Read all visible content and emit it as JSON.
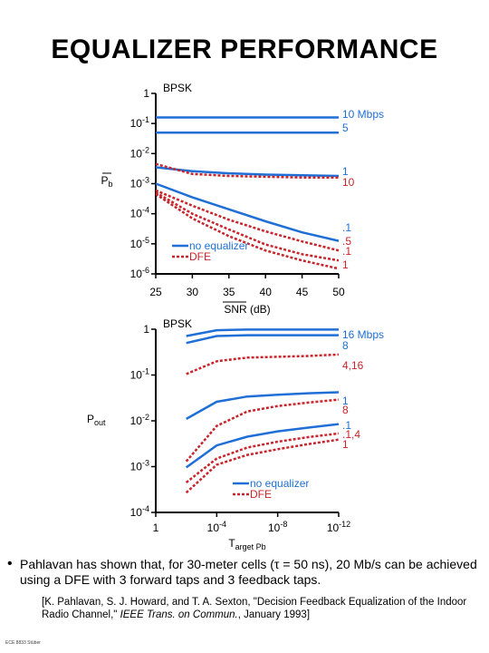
{
  "title": "EQUALIZER PERFORMANCE",
  "bullet": "Pahlavan has shown that, for 30-meter cells (τ = 50 ns), 20 Mb/s can be achieved using a DFE with 3 forward taps and 3 feedback taps.",
  "reference": {
    "prefix": "[K. Pahlavan, S. J. Howard, and T. A. Sexton, \"Decision Feedback Equalization of the Indoor Radio Channel,\" ",
    "journal": "IEEE Trans. on Commun.",
    "suffix": ", January 1993]"
  },
  "footer": "ECE 8833 Stüber",
  "colors": {
    "no_equalizer": "#1f6fd6",
    "dfe": "#c8242b",
    "axis": "#000000"
  },
  "chart_data": [
    {
      "type": "line",
      "annotation": "BPSK",
      "xlabel": "SNR (dB)",
      "ylabel": "Pb",
      "x_scale": "linear",
      "y_scale": "log",
      "xlim": [
        25,
        50
      ],
      "ylim": [
        1e-06,
        1
      ],
      "xticks": [
        "25",
        "30",
        "35",
        "40",
        "45",
        "50"
      ],
      "yticks": [
        "1",
        "10-1",
        "10-2",
        "10-3",
        "10-4",
        "10-5",
        "10-6"
      ],
      "legend": {
        "position": "center-left",
        "entries": [
          "no equalizer",
          "DFE"
        ]
      },
      "series": [
        {
          "label": "10 Mbps",
          "style": "no_equalizer",
          "x": [
            25,
            50
          ],
          "y": [
            0.1585,
            0.1585
          ]
        },
        {
          "label": "5",
          "style": "no_equalizer",
          "x": [
            25,
            50
          ],
          "y": [
            0.05,
            0.05
          ]
        },
        {
          "label": "1",
          "style": "no_equalizer",
          "x": [
            25,
            30,
            35,
            40,
            45,
            50
          ],
          "y": [
            0.0035,
            0.0026,
            0.0022,
            0.002,
            0.0019,
            0.0018
          ]
        },
        {
          "label": "10",
          "style": "dfe",
          "x": [
            25,
            30,
            35,
            40,
            45,
            50
          ],
          "y": [
            0.0045,
            0.0021,
            0.0018,
            0.0017,
            0.0016,
            0.0016
          ]
        },
        {
          "label": ".1",
          "style": "no_equalizer",
          "x": [
            25,
            30,
            35,
            40,
            45,
            50
          ],
          "y": [
            0.001,
            0.00035,
            0.00014,
            5.6e-05,
            2.4e-05,
            1.25e-05
          ]
        },
        {
          "label": ".5",
          "style": "dfe",
          "x": [
            25,
            30,
            35,
            40,
            45,
            50
          ],
          "y": [
            0.0006,
            0.000185,
            6.3e-05,
            2.6e-05,
            1.2e-05,
            6e-06
          ]
        },
        {
          "label": ".1",
          "style": "dfe",
          "x": [
            25,
            30,
            35,
            40,
            45,
            50
          ],
          "y": [
            0.00051,
            0.0001,
            3e-05,
            9.5e-06,
            4.5e-06,
            2.8e-06
          ]
        },
        {
          "label": "1",
          "style": "dfe",
          "x": [
            25,
            30,
            35,
            40,
            45,
            50
          ],
          "y": [
            0.00045,
            7e-05,
            1.8e-05,
            6e-06,
            2.8e-06,
            1.5e-06
          ]
        }
      ]
    },
    {
      "type": "line",
      "annotation": "BPSK",
      "xlabel": "Target Pb",
      "ylabel": "Pout",
      "x_scale": "log",
      "y_scale": "log",
      "xlim": [
        1,
        1e-12
      ],
      "ylim": [
        0.0001,
        1
      ],
      "xticks": [
        "1",
        "10-4",
        "10-8",
        "10-12"
      ],
      "yticks": [
        "1",
        "10-1",
        "10-2",
        "10-3",
        "10-4"
      ],
      "legend": {
        "position": "bottom-center",
        "entries": [
          "no equalizer",
          "DFE"
        ]
      },
      "series": [
        {
          "label": "16 Mbps",
          "style": "no_equalizer",
          "x": [
            0.01,
            0.0001,
            1e-06,
            1e-08,
            1e-10,
            1e-12
          ],
          "y": [
            0.71,
            0.95,
            0.98,
            0.98,
            0.98,
            0.98
          ]
        },
        {
          "label": "8",
          "style": "no_equalizer",
          "x": [
            0.01,
            0.0001,
            1e-06,
            1e-08,
            1e-10,
            1e-12
          ],
          "y": [
            0.5,
            0.71,
            0.74,
            0.74,
            0.74,
            0.74
          ]
        },
        {
          "label": "4,16",
          "style": "dfe",
          "x": [
            0.01,
            0.0001,
            1e-06,
            1e-08,
            1e-10,
            1e-12
          ],
          "y": [
            0.105,
            0.2,
            0.24,
            0.25,
            0.26,
            0.28
          ]
        },
        {
          "label": "1",
          "style": "no_equalizer",
          "x": [
            0.01,
            0.0001,
            1e-06,
            1e-08,
            1e-10,
            1e-12
          ],
          "y": [
            0.011,
            0.026,
            0.034,
            0.037,
            0.04,
            0.042
          ]
        },
        {
          "label": "8",
          "style": "dfe",
          "x": [
            0.01,
            0.0001,
            1e-06,
            1e-08,
            1e-10,
            1e-12
          ],
          "y": [
            0.0013,
            0.0077,
            0.016,
            0.021,
            0.025,
            0.029
          ]
        },
        {
          "label": ".1",
          "style": "no_equalizer",
          "x": [
            0.01,
            0.0001,
            1e-06,
            1e-08,
            1e-10,
            1e-12
          ],
          "y": [
            0.00096,
            0.0029,
            0.0045,
            0.0059,
            0.0071,
            0.0085
          ]
        },
        {
          "label": ".1,4",
          "style": "dfe",
          "x": [
            0.01,
            0.0001,
            1e-06,
            1e-08,
            1e-10,
            1e-12
          ],
          "y": [
            0.00045,
            0.0015,
            0.0026,
            0.0035,
            0.0044,
            0.0053
          ]
        },
        {
          "label": "1",
          "style": "dfe",
          "x": [
            0.01,
            0.0001,
            1e-06,
            1e-08,
            1e-10,
            1e-12
          ],
          "y": [
            0.00027,
            0.0011,
            0.0018,
            0.0024,
            0.0031,
            0.0039
          ]
        }
      ]
    }
  ]
}
